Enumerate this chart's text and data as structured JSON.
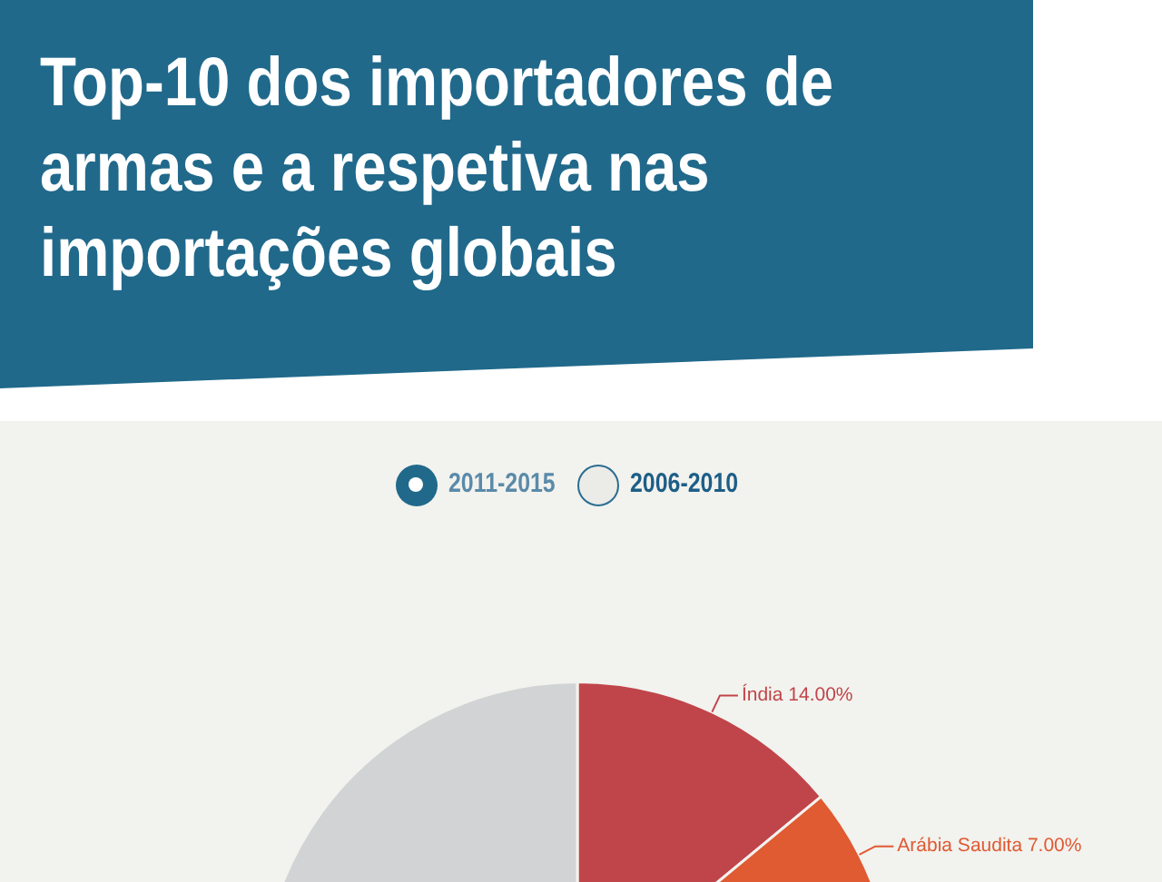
{
  "chart_data": {
    "type": "pie",
    "title": "Top-10 dos importadores de armas e a respetiva nas importações globais",
    "annotations": [
      "2011-2015",
      "2006-2010"
    ],
    "categories": [
      "Índia",
      "Arábia Saudita",
      null
    ],
    "values": [
      14,
      7,
      79
    ],
    "colors": [
      "#c0454a",
      "#e05a32",
      "#d2d3d5"
    ],
    "value_labels": [
      "14.00%",
      "7.00%",
      null
    ]
  }
}
